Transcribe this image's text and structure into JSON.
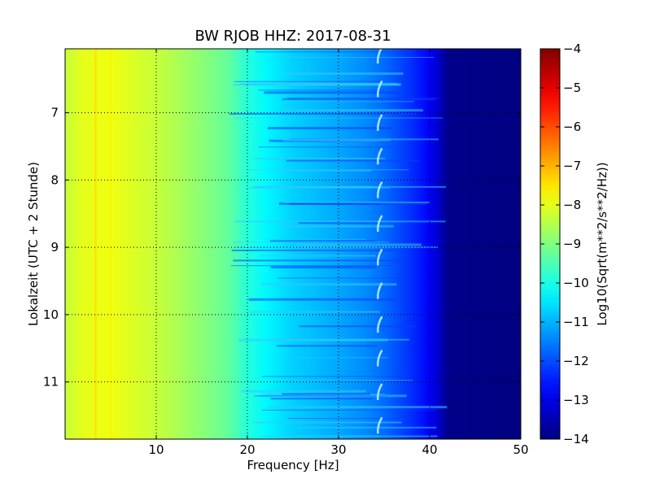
{
  "chart_data": {
    "type": "heatmap",
    "title": "BW RJOB HHZ: 2017-08-31",
    "xlabel": "Frequency [Hz]",
    "ylabel": "Lokalzeit (UTC + 2 Stunde)",
    "xlim": [
      0,
      50
    ],
    "ylim": [
      6.05,
      11.85
    ],
    "y_inverted": true,
    "x_ticks": [
      10,
      20,
      30,
      40,
      50
    ],
    "x_tick_labels": [
      "10",
      "20",
      "30",
      "40",
      "50"
    ],
    "y_ticks": [
      7,
      8,
      9,
      10,
      11
    ],
    "y_tick_labels": [
      "7",
      "8",
      "9",
      "10",
      "11"
    ],
    "grid": true,
    "colormap": "jet",
    "colorbar": {
      "label": "Log10(Sqrt(m**2/s**2/Hz))",
      "range": [
        -14,
        -4
      ],
      "ticks": [
        -4,
        -5,
        -6,
        -7,
        -8,
        -9,
        -10,
        -11,
        -12,
        -13,
        -14
      ],
      "tick_labels": [
        "−4",
        "−5",
        "−6",
        "−7",
        "−8",
        "−9",
        "−10",
        "−11",
        "−12",
        "−13",
        "−14"
      ]
    },
    "spectrum_profile": {
      "frequency_hz": [
        0,
        2,
        5,
        10,
        15,
        18,
        20,
        22,
        25,
        30,
        33,
        35,
        38,
        40,
        41,
        42,
        50
      ],
      "log10_amplitude": [
        -8.3,
        -8.0,
        -7.9,
        -8.3,
        -8.9,
        -9.3,
        -9.9,
        -10.3,
        -10.7,
        -11.1,
        -11.4,
        -11.7,
        -12.3,
        -12.8,
        -13.3,
        -13.9,
        -14.0
      ]
    },
    "features": [
      {
        "name": "persistent peak",
        "frequency_hz": 5,
        "log10_amplitude": -7.6
      },
      {
        "name": "recurring drifting line",
        "frequency_hz": 34.5
      }
    ]
  }
}
